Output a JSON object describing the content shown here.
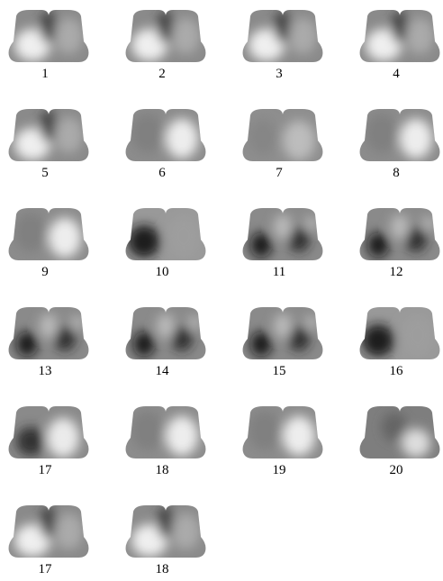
{
  "panels": [
    {
      "label": "1"
    },
    {
      "label": "2"
    },
    {
      "label": "3"
    },
    {
      "label": "4"
    },
    {
      "label": "5"
    },
    {
      "label": "6"
    },
    {
      "label": "7"
    },
    {
      "label": "8"
    },
    {
      "label": "9"
    },
    {
      "label": "10"
    },
    {
      "label": "11"
    },
    {
      "label": "12"
    },
    {
      "label": "13"
    },
    {
      "label": "14"
    },
    {
      "label": "15"
    },
    {
      "label": "16"
    },
    {
      "label": "17"
    },
    {
      "label": "18"
    },
    {
      "label": "19"
    },
    {
      "label": "20"
    },
    {
      "label": "17"
    },
    {
      "label": "18"
    }
  ]
}
